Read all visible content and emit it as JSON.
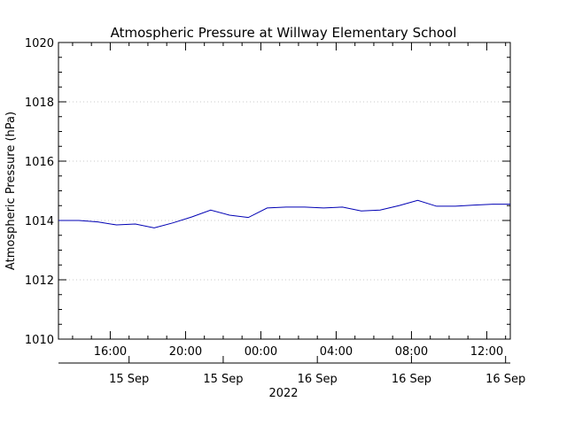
{
  "chart_data": {
    "type": "line",
    "title": "Atmospheric Pressure at Willway Elementary School",
    "ylabel": "Atmospheric Pressure (hPa)",
    "xlabel": "2022",
    "ylim": [
      1010,
      1020
    ],
    "y_major_ticks": [
      1010,
      1012,
      1014,
      1016,
      1018,
      1020
    ],
    "y_tick_labels": [
      "1010",
      "1012",
      "1014",
      "1016",
      "1018",
      "1020"
    ],
    "y_minor_step": 0.5,
    "xlim": [
      "2022-09-15T13:15",
      "2022-09-16T13:15"
    ],
    "x_major_ticks": [
      "2022-09-15T16:00",
      "2022-09-15T20:00",
      "2022-09-16T00:00",
      "2022-09-16T04:00",
      "2022-09-16T08:00",
      "2022-09-16T12:00"
    ],
    "x_tick_labels": [
      "16:00",
      "20:00",
      "00:00",
      "04:00",
      "08:00",
      "12:00"
    ],
    "x_minor_step_minutes": 60,
    "date_axis": {
      "ticks": [
        "2022-09-15T17:00",
        "2022-09-15T22:00",
        "2022-09-16T03:00",
        "2022-09-16T08:00",
        "2022-09-16T13:00"
      ],
      "labels": [
        "15 Sep",
        "15 Sep",
        "16 Sep",
        "16 Sep",
        "16 Sep"
      ]
    },
    "grid": "horizontal-dotted",
    "colors": {
      "line": "#0000b4",
      "grid": "#c8c8c8",
      "axis": "#000000"
    },
    "series": [
      {
        "x": [
          "2022-09-15T13:15",
          "2022-09-15T14:20",
          "2022-09-15T15:20",
          "2022-09-15T16:20",
          "2022-09-15T17:20",
          "2022-09-15T18:20",
          "2022-09-15T19:20",
          "2022-09-15T20:20",
          "2022-09-15T21:20",
          "2022-09-15T22:20",
          "2022-09-15T23:20",
          "2022-09-16T00:20",
          "2022-09-16T01:20",
          "2022-09-16T02:20",
          "2022-09-16T03:20",
          "2022-09-16T04:20",
          "2022-09-16T05:20",
          "2022-09-16T06:20",
          "2022-09-16T07:20",
          "2022-09-16T08:20",
          "2022-09-16T09:20",
          "2022-09-16T10:20",
          "2022-09-16T11:20",
          "2022-09-16T12:20",
          "2022-09-16T13:15"
        ],
        "values": [
          1014.0,
          1014.0,
          1013.95,
          1013.85,
          1013.88,
          1013.75,
          1013.92,
          1014.12,
          1014.35,
          1014.18,
          1014.1,
          1014.42,
          1014.45,
          1014.45,
          1014.42,
          1014.45,
          1014.32,
          1014.35,
          1014.5,
          1014.68,
          1014.48,
          1014.48,
          1014.52,
          1014.55,
          1014.55
        ]
      }
    ]
  }
}
